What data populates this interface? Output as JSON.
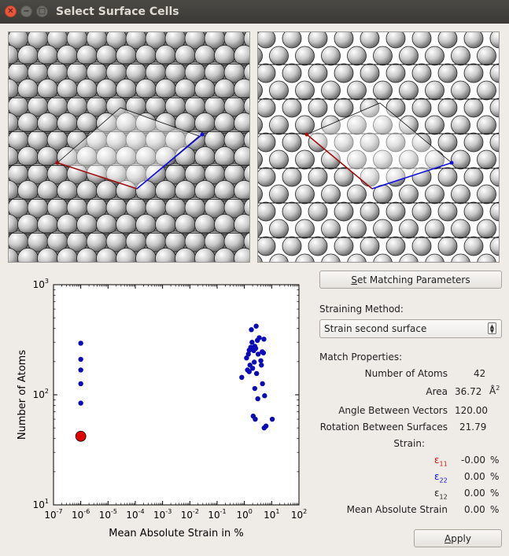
{
  "window": {
    "title": "Select Surface Cells",
    "controls": [
      "close-icon",
      "minimize-icon",
      "maximize-icon"
    ]
  },
  "buttons": {
    "set_matching_prefix": "S",
    "set_matching_rest": "et Matching Parameters",
    "apply_prefix": "A",
    "apply_rest": "pply"
  },
  "straining": {
    "label": "Straining Method:",
    "selected": "Strain second surface"
  },
  "match_properties": {
    "heading": "Match Properties:",
    "number_of_atoms_label": "Number of Atoms",
    "number_of_atoms": "42",
    "area_label": "Area",
    "area_value": "36.72",
    "area_unit": "Å",
    "area_unit_exp": "2",
    "angle_label": "Angle Between Vectors",
    "angle_value": "120.00",
    "rotation_label": "Rotation Between Surfaces",
    "rotation_value": "21.79",
    "strain_label": "Strain:",
    "e11_symbol": "ε",
    "e11_sub": "11",
    "e11_value": "-0.00",
    "e22_symbol": "ε",
    "e22_sub": "22",
    "e22_value": "0.00",
    "e12_symbol": "ε",
    "e12_sub": "12",
    "e12_value": "0.00",
    "mean_label": "Mean Absolute Strain",
    "mean_value": "0.00",
    "percent": "%",
    "colors": {
      "e11": "#d01010",
      "e22": "#1010d0",
      "e12": "#222222"
    }
  },
  "chart_data": {
    "type": "scatter",
    "xlabel": "Mean Absolute Strain in %",
    "ylabel": "Number of Atoms",
    "x_scale": "log",
    "y_scale": "log",
    "xlim": [
      1e-07,
      100
    ],
    "ylim": [
      10,
      1000
    ],
    "x_ticks": [
      {
        "value": 1e-07,
        "base": "10",
        "exp": "-7"
      },
      {
        "value": 1e-06,
        "base": "10",
        "exp": "-6"
      },
      {
        "value": 1e-05,
        "base": "10",
        "exp": "-5"
      },
      {
        "value": 0.0001,
        "base": "10",
        "exp": "-4"
      },
      {
        "value": 0.001,
        "base": "10",
        "exp": "-3"
      },
      {
        "value": 0.01,
        "base": "10",
        "exp": "-2"
      },
      {
        "value": 0.1,
        "base": "10",
        "exp": "-1"
      },
      {
        "value": 1,
        "base": "10",
        "exp": "0"
      },
      {
        "value": 10,
        "base": "10",
        "exp": "1"
      },
      {
        "value": 100,
        "base": "10",
        "exp": "2"
      }
    ],
    "y_ticks": [
      {
        "value": 10,
        "base": "10",
        "exp": "1"
      },
      {
        "value": 100,
        "base": "10",
        "exp": "2"
      },
      {
        "value": 1000,
        "base": "10",
        "exp": "3"
      }
    ],
    "grid": false,
    "series": [
      {
        "color": "#0a0ab8",
        "points": [
          [
            1e-06,
            84
          ],
          [
            1e-06,
            126
          ],
          [
            1e-06,
            168
          ],
          [
            1e-06,
            210
          ],
          [
            1e-06,
            294
          ],
          [
            0.8,
            144
          ],
          [
            1.2,
            216
          ],
          [
            1.3,
            168
          ],
          [
            1.4,
            234
          ],
          [
            1.5,
            254
          ],
          [
            1.6,
            186
          ],
          [
            1.7,
            270
          ],
          [
            1.8,
            390
          ],
          [
            1.9,
            300
          ],
          [
            2.0,
            174
          ],
          [
            2.1,
            64
          ],
          [
            2.2,
            252
          ],
          [
            2.3,
            198
          ],
          [
            2.4,
            114
          ],
          [
            2.5,
            60
          ],
          [
            2.6,
            264
          ],
          [
            2.7,
            420
          ],
          [
            2.8,
            156
          ],
          [
            3.0,
            312
          ],
          [
            3.1,
            92
          ],
          [
            3.2,
            234
          ],
          [
            3.5,
            330
          ],
          [
            4.0,
            204
          ],
          [
            4.2,
            186
          ],
          [
            4.5,
            246
          ],
          [
            4.6,
            126
          ],
          [
            5.0,
            240
          ],
          [
            5.2,
            320
          ],
          [
            5.3,
            50
          ],
          [
            5.5,
            98
          ],
          [
            6.2,
            52
          ],
          [
            10.5,
            60
          ],
          [
            2.4,
            276
          ],
          [
            1.5,
            162
          ]
        ]
      },
      {
        "color": "#e00000",
        "highlight": true,
        "points": [
          [
            1e-06,
            42
          ]
        ]
      }
    ]
  }
}
